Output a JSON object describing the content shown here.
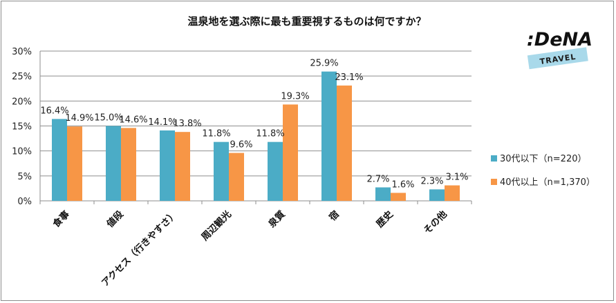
{
  "chart_data": {
    "type": "bar",
    "title": "温泉地を選ぶ際に最も重要視するものは何ですか？",
    "categories": [
      "食事",
      "値段",
      "アクセス（行きやすさ）",
      "周辺観光",
      "泉質",
      "宿",
      "歴史",
      "その他"
    ],
    "series": [
      {
        "name": "30代以下（n=220）",
        "color": "#4bacc6",
        "values": [
          16.4,
          15.0,
          14.1,
          11.8,
          11.8,
          25.9,
          2.7,
          2.3
        ]
      },
      {
        "name": "40代以上（n=1,370）",
        "color": "#f79646",
        "values": [
          14.9,
          14.6,
          13.8,
          9.6,
          19.3,
          23.1,
          1.6,
          3.1
        ]
      }
    ],
    "ylim": [
      0,
      30
    ],
    "yticks": [
      0,
      5,
      10,
      15,
      20,
      25,
      30
    ],
    "yticklabels": [
      "0%",
      "5%",
      "10%",
      "15%",
      "20%",
      "25%",
      "30%"
    ],
    "value_labels": [
      [
        "16.4%",
        "15.0%",
        "14.1%",
        "11.8%",
        "11.8%",
        "25.9%",
        "2.7%",
        "2.3%"
      ],
      [
        "14.9%",
        "14.6%",
        "13.8%",
        "9.6%",
        "19.3%",
        "23.1%",
        "1.6%",
        "3.1%"
      ]
    ],
    "grid": true,
    "legend": "right"
  },
  "logo": {
    "brand": ":DeNA",
    "sub": "TRAVEL",
    "band_color": "#a9d9ea"
  }
}
